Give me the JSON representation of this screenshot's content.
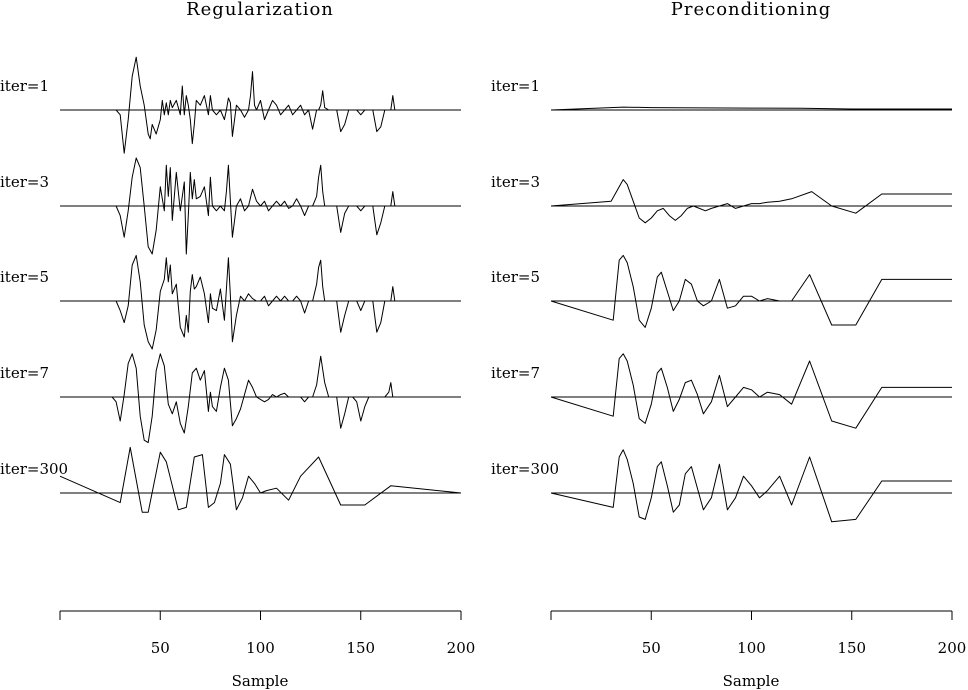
{
  "chart_data": [
    {
      "type": "line",
      "title": "Regularization",
      "xlabel": "Sample",
      "ylabel": "",
      "xlim": [
        0,
        200
      ],
      "xticks": [
        50,
        100,
        150,
        200
      ],
      "grid": false,
      "traces": [
        {
          "label": "iter=1",
          "x": [
            0,
            28,
            30,
            32,
            34,
            36,
            38,
            40,
            42,
            44,
            45,
            46,
            47,
            48,
            50,
            51,
            52,
            53,
            54,
            55,
            56,
            58,
            60,
            61,
            62,
            63,
            64,
            65,
            66,
            67,
            68,
            70,
            72,
            74,
            75,
            76,
            78,
            80,
            82,
            83,
            84,
            85,
            86,
            88,
            90,
            92,
            94,
            95,
            96,
            97,
            98,
            100,
            102,
            104,
            106,
            108,
            110,
            112,
            114,
            116,
            118,
            120,
            122,
            124,
            126,
            128,
            129,
            130,
            131,
            132,
            134,
            136,
            138,
            140,
            142,
            144,
            146,
            148,
            150,
            152,
            154,
            156,
            158,
            160,
            162,
            164,
            165,
            166,
            167,
            168,
            170,
            200
          ],
          "y": [
            0,
            0,
            -0.1,
            -0.9,
            -0.2,
            0.7,
            1.1,
            0.5,
            0.1,
            -0.5,
            -0.6,
            -0.3,
            -0.4,
            -0.5,
            -0.2,
            0.2,
            -0.1,
            0.15,
            -0.1,
            0.2,
            0.05,
            0.2,
            -0.1,
            0.5,
            -0.1,
            0.3,
            0.1,
            -0.2,
            -0.7,
            -0.3,
            0.2,
            0.1,
            0.3,
            -0.1,
            0.3,
            0,
            -0.1,
            0,
            -0.2,
            0,
            0.25,
            0.15,
            -0.55,
            0.1,
            0,
            -0.15,
            0,
            0.3,
            0.8,
            0.1,
            0,
            0.2,
            -0.2,
            0,
            0.2,
            0.1,
            -0.1,
            0,
            0.1,
            -0.1,
            0,
            0.1,
            -0.1,
            0,
            -0.4,
            0,
            0,
            0.1,
            0.4,
            0.05,
            0,
            0,
            0,
            -0.45,
            -0.3,
            0,
            0,
            0,
            -0.1,
            0,
            0,
            0,
            -0.45,
            -0.35,
            0,
            0,
            0,
            0.3,
            0,
            0,
            0,
            0
          ]
        },
        {
          "label": "iter=3",
          "x": [
            0,
            28,
            30,
            32,
            34,
            36,
            38,
            40,
            42,
            44,
            46,
            48,
            50,
            52,
            53,
            54,
            55,
            56,
            58,
            60,
            62,
            63,
            64,
            65,
            66,
            67,
            68,
            70,
            72,
            74,
            75,
            76,
            78,
            80,
            82,
            83,
            84,
            85,
            86,
            88,
            90,
            92,
            94,
            96,
            98,
            100,
            102,
            104,
            106,
            108,
            110,
            112,
            114,
            116,
            118,
            120,
            122,
            124,
            126,
            128,
            129,
            130,
            131,
            132,
            134,
            136,
            138,
            140,
            142,
            144,
            146,
            148,
            150,
            152,
            154,
            156,
            158,
            160,
            162,
            164,
            165,
            166,
            167,
            168,
            170,
            200
          ],
          "y": [
            0,
            0,
            -0.2,
            -0.65,
            -0.1,
            0.6,
            1,
            0.8,
            0,
            -0.85,
            -1,
            -0.5,
            0.4,
            -0.1,
            0.85,
            0.2,
            0.8,
            -0.3,
            0.7,
            -0.1,
            0.5,
            -1,
            -0.2,
            0.7,
            0.15,
            0.55,
            0.15,
            0.2,
            0.4,
            -0.2,
            0.6,
            0,
            -0.1,
            0,
            -0.1,
            0.3,
            0.85,
            0.1,
            -0.65,
            0,
            0.15,
            -0.1,
            0,
            0.35,
            0.1,
            0,
            0.1,
            -0.1,
            0,
            0.1,
            0,
            0.1,
            -0.05,
            0,
            0.15,
            0,
            -0.2,
            0,
            0,
            0.2,
            0.6,
            0.85,
            0.3,
            0,
            0,
            0,
            0,
            -0.55,
            -0.15,
            0,
            0,
            0,
            -0.1,
            0,
            0,
            0,
            -0.6,
            -0.35,
            0,
            0,
            0,
            0.3,
            0,
            0,
            0,
            0
          ]
        },
        {
          "label": "iter=5",
          "x": [
            0,
            28,
            30,
            32,
            34,
            36,
            38,
            40,
            42,
            44,
            46,
            48,
            50,
            52,
            53,
            54,
            55,
            56,
            58,
            60,
            62,
            63,
            64,
            65,
            66,
            67,
            68,
            70,
            72,
            74,
            75,
            76,
            78,
            80,
            82,
            83,
            84,
            85,
            86,
            88,
            90,
            92,
            94,
            96,
            98,
            100,
            102,
            104,
            106,
            108,
            110,
            112,
            114,
            116,
            118,
            120,
            122,
            124,
            126,
            128,
            129,
            130,
            131,
            132,
            134,
            136,
            138,
            140,
            142,
            144,
            146,
            148,
            150,
            152,
            154,
            156,
            158,
            160,
            162,
            164,
            165,
            166,
            167,
            168,
            170,
            200
          ],
          "y": [
            0,
            0,
            -0.2,
            -0.45,
            -0.1,
            0.75,
            0.95,
            0.4,
            -0.5,
            -0.85,
            -1,
            -0.6,
            0.2,
            0.45,
            0.9,
            0.4,
            0.75,
            0.15,
            0.35,
            -0.55,
            -0.75,
            -0.3,
            -0.65,
            0.2,
            0.55,
            0.25,
            0.3,
            0.5,
            0.15,
            -0.45,
            0.15,
            -0.15,
            -0.2,
            0.25,
            -0.4,
            0.25,
            0.9,
            0.1,
            -0.85,
            -0.3,
            0.1,
            0,
            0.15,
            0.05,
            0,
            0,
            0.1,
            -0.1,
            0,
            0.1,
            0,
            0.1,
            0,
            0,
            0.1,
            0,
            -0.25,
            0,
            0,
            0.35,
            0.7,
            0.85,
            0.3,
            0,
            0,
            0,
            0,
            -0.65,
            -0.3,
            0,
            0,
            0,
            -0.2,
            0,
            0,
            0,
            -0.65,
            -0.45,
            0,
            0,
            0,
            0.3,
            0,
            0,
            0,
            0
          ]
        },
        {
          "label": "iter=7",
          "x": [
            0,
            26,
            28,
            30,
            32,
            34,
            36,
            38,
            40,
            42,
            44,
            46,
            48,
            50,
            52,
            54,
            56,
            58,
            60,
            62,
            64,
            66,
            68,
            70,
            72,
            74,
            75,
            76,
            78,
            80,
            82,
            84,
            86,
            88,
            90,
            92,
            94,
            96,
            98,
            100,
            102,
            104,
            106,
            108,
            110,
            112,
            114,
            116,
            118,
            120,
            122,
            124,
            126,
            128,
            130,
            132,
            134,
            136,
            138,
            140,
            142,
            144,
            146,
            148,
            150,
            152,
            154,
            156,
            158,
            160,
            162,
            164,
            165,
            166,
            168,
            170,
            200
          ],
          "y": [
            0,
            0,
            -0.1,
            -0.5,
            0.05,
            0.7,
            0.9,
            0.6,
            -0.4,
            -0.9,
            -0.95,
            -0.4,
            0.55,
            0.9,
            0.65,
            -0.15,
            -0.35,
            -0.1,
            -0.55,
            -0.75,
            -0.2,
            0.5,
            0.6,
            0.35,
            0.55,
            -0.3,
            0.1,
            -0.2,
            -0.3,
            0.2,
            0.6,
            0.35,
            -0.6,
            -0.45,
            -0.25,
            0.05,
            0.35,
            0.2,
            0,
            -0.05,
            -0.1,
            -0.05,
            0.05,
            0,
            0.05,
            0.08,
            0,
            0,
            0,
            0,
            -0.1,
            0,
            0,
            0.25,
            0.85,
            0.3,
            0,
            0,
            0,
            -0.65,
            -0.35,
            0,
            0,
            -0.1,
            -0.5,
            -0.2,
            0,
            0,
            0,
            0,
            0,
            0.1,
            0.3,
            0,
            0,
            0,
            0
          ]
        },
        {
          "label": "iter=300",
          "x": [
            0,
            30,
            35,
            41,
            44,
            50,
            53,
            59,
            63,
            67,
            71,
            74,
            77,
            80,
            82,
            85,
            88,
            91,
            94,
            97,
            100,
            103,
            108,
            114,
            120,
            129,
            140,
            152,
            165,
            200
          ],
          "y": [
            0.35,
            -0.2,
            0.95,
            -0.4,
            -0.4,
            0.85,
            0.65,
            -0.35,
            -0.3,
            0.75,
            0.8,
            -0.3,
            -0.2,
            0.2,
            0.8,
            0.6,
            -0.35,
            -0.1,
            0.35,
            0.2,
            0,
            0.05,
            0.1,
            -0.15,
            0.35,
            0.75,
            -0.25,
            -0.25,
            0.15,
            0
          ]
        }
      ]
    },
    {
      "type": "line",
      "title": "Preconditioning",
      "xlabel": "Sample",
      "ylabel": "",
      "xlim": [
        0,
        200
      ],
      "xticks": [
        50,
        100,
        150,
        200
      ],
      "grid": false,
      "traces": [
        {
          "label": "iter=1",
          "x": [
            0,
            36,
            50,
            100,
            125,
            150,
            165,
            200
          ],
          "y": [
            0,
            0.06,
            0.05,
            0.04,
            0.035,
            0.02,
            0.02,
            0.02
          ]
        },
        {
          "label": "iter=3",
          "x": [
            0,
            30,
            34,
            36,
            38,
            41,
            44,
            47,
            50,
            53,
            56,
            59,
            62,
            65,
            68,
            71,
            74,
            77,
            80,
            84,
            88,
            92,
            96,
            100,
            104,
            108,
            114,
            120,
            130,
            140,
            152,
            165,
            200
          ],
          "y": [
            0,
            0.1,
            0.4,
            0.55,
            0.45,
            0.1,
            -0.25,
            -0.35,
            -0.25,
            -0.1,
            -0.05,
            -0.2,
            -0.3,
            -0.2,
            -0.05,
            0,
            -0.05,
            -0.1,
            -0.05,
            0,
            0.05,
            -0.05,
            0,
            0.05,
            0.05,
            0.08,
            0.1,
            0.15,
            0.3,
            0,
            -0.15,
            0.25,
            0.25
          ]
        },
        {
          "label": "iter=5",
          "x": [
            0,
            31,
            34,
            36,
            38,
            41,
            44,
            47,
            50,
            53,
            55,
            58,
            61,
            64,
            67,
            70,
            73,
            76,
            80,
            84,
            88,
            92,
            96,
            100,
            104,
            108,
            114,
            120,
            129,
            140,
            152,
            165,
            200
          ],
          "y": [
            0,
            -0.4,
            0.85,
            0.95,
            0.8,
            0.3,
            -0.4,
            -0.55,
            -0.15,
            0.5,
            0.6,
            0.2,
            -0.2,
            0,
            0.45,
            0.35,
            0,
            -0.1,
            0,
            0.45,
            -0.15,
            -0.1,
            0.1,
            0.1,
            0,
            0.05,
            0,
            0,
            0.55,
            -0.5,
            -0.5,
            0.45,
            0.45
          ]
        },
        {
          "label": "iter=7",
          "x": [
            0,
            31,
            34,
            36,
            38,
            41,
            44,
            47,
            50,
            53,
            55,
            58,
            61,
            64,
            67,
            70,
            73,
            76,
            80,
            84,
            88,
            92,
            96,
            100,
            104,
            108,
            114,
            120,
            129,
            140,
            152,
            165,
            200
          ],
          "y": [
            0,
            -0.4,
            0.8,
            0.9,
            0.75,
            0.25,
            -0.45,
            -0.55,
            -0.15,
            0.5,
            0.6,
            0.2,
            -0.3,
            -0.05,
            0.3,
            0.35,
            0.05,
            -0.35,
            -0.1,
            0.45,
            -0.2,
            0,
            0.2,
            0.15,
            0,
            0.1,
            0.05,
            -0.15,
            0.75,
            -0.5,
            -0.65,
            0.2,
            0.2
          ]
        },
        {
          "label": "iter=300",
          "x": [
            0,
            31,
            34,
            36,
            38,
            41,
            44,
            47,
            50,
            53,
            55,
            58,
            61,
            64,
            67,
            70,
            73,
            76,
            80,
            84,
            88,
            92,
            96,
            100,
            104,
            108,
            114,
            120,
            129,
            140,
            152,
            165,
            200
          ],
          "y": [
            0,
            -0.3,
            0.75,
            0.9,
            0.7,
            0.2,
            -0.5,
            -0.55,
            -0.1,
            0.55,
            0.65,
            0.15,
            -0.4,
            -0.25,
            0.4,
            0.55,
            0.1,
            -0.35,
            -0.1,
            0.6,
            -0.35,
            -0.1,
            0.35,
            0.15,
            -0.1,
            0.05,
            0.35,
            -0.25,
            0.75,
            -0.6,
            -0.55,
            0.25,
            0.25
          ]
        }
      ]
    }
  ]
}
